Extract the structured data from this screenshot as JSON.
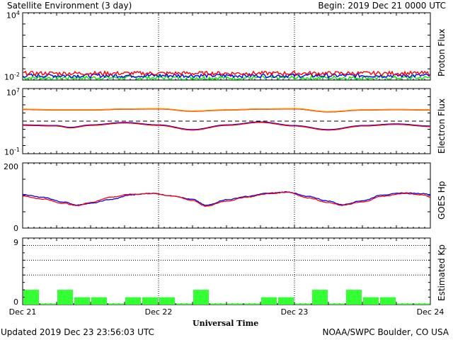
{
  "header": {
    "title": "Satellite Environment (3 day)",
    "begin": "Begin:  2019 Dec 21 0000 UTC"
  },
  "footer": {
    "updated": "Updated 2019 Dec 23 23:56:03 UTC",
    "credit": "NOAA/SWPC Boulder, CO USA"
  },
  "x_axis": {
    "title": "Universal Time",
    "ticks": [
      "Dec 21",
      "Dec 22",
      "Dec 23",
      "Dec 24"
    ]
  },
  "panels": {
    "proton": {
      "ylabel": "Proton Flux",
      "ytick_top_base": "10",
      "ytick_top_exp": "4",
      "ytick_bottom_base": "10",
      "ytick_bottom_exp": "-2"
    },
    "electron": {
      "ylabel": "Electron Flux",
      "ytick_top_base": "10",
      "ytick_top_exp": "7",
      "ytick_bottom_base": "10",
      "ytick_bottom_exp": "-1"
    },
    "goes": {
      "ylabel": "GOES Hp",
      "ytick_top": "200",
      "ytick_bottom": "0"
    },
    "kp": {
      "ylabel": "Estimated Kp",
      "ytick_top": "9",
      "ytick_bottom": "0"
    }
  },
  "colors": {
    "red": "#ff0000",
    "blue": "#0000ff",
    "green": "#00ee00",
    "orange": "#ff9900",
    "kp_bar": "#33ff33"
  },
  "chart_data": [
    {
      "type": "line",
      "panel": "proton",
      "ylabel": "Proton Flux",
      "ylim": [
        0.01,
        10000
      ],
      "log_scale": true,
      "x_range": [
        "2019-12-21",
        "2019-12-24"
      ],
      "threshold": 10,
      "series": [
        {
          "color": "red",
          "level": 0.04
        },
        {
          "color": "blue",
          "level": 0.025
        },
        {
          "color": "green",
          "level": 0.016
        }
      ]
    },
    {
      "type": "line",
      "panel": "electron",
      "ylabel": "Electron Flux",
      "ylim": [
        0.1,
        10000000
      ],
      "log_scale": true,
      "threshold": 1000,
      "series": [
        {
          "color": "orange",
          "x": [
            0,
            0.25,
            0.5,
            0.75,
            1.0,
            1.25,
            1.5,
            1.75,
            2.0,
            2.25,
            2.5,
            2.75,
            3.0
          ],
          "y": [
            30000,
            25000,
            25000,
            32000,
            35000,
            18000,
            25000,
            32000,
            35000,
            15000,
            25000,
            28000,
            25000
          ]
        },
        {
          "color": "red",
          "x": [
            0,
            0.25,
            0.35,
            0.5,
            0.75,
            1.0,
            1.25,
            1.5,
            1.75,
            2.0,
            2.25,
            2.5,
            2.75,
            3.0
          ],
          "y": [
            300,
            250,
            150,
            300,
            600,
            300,
            80,
            300,
            700,
            250,
            80,
            250,
            400,
            220
          ]
        }
      ]
    },
    {
      "type": "line",
      "panel": "goes",
      "ylabel": "GOES Hp",
      "ylim": [
        0,
        200
      ],
      "series": [
        {
          "color": "blue",
          "x": [
            0,
            0.15,
            0.3,
            0.4,
            0.5,
            0.65,
            0.8,
            0.95,
            1.1,
            1.25,
            1.35,
            1.5,
            1.65,
            1.8,
            1.95,
            2.1,
            2.25,
            2.35,
            2.5,
            2.65,
            2.8,
            2.95,
            3.0
          ],
          "y": [
            103,
            94,
            80,
            71,
            76,
            88,
            102,
            107,
            99,
            88,
            70,
            87,
            97,
            107,
            111,
            97,
            83,
            72,
            84,
            102,
            108,
            106,
            103
          ]
        },
        {
          "color": "red",
          "x": [
            0,
            0.15,
            0.3,
            0.4,
            0.5,
            0.65,
            0.8,
            0.95,
            1.1,
            1.25,
            1.35,
            1.5,
            1.65,
            1.8,
            1.95,
            2.1,
            2.25,
            2.35,
            2.5,
            2.65,
            2.8,
            2.95,
            3.0
          ],
          "y": [
            98,
            89,
            76,
            69,
            79,
            95,
            104,
            106,
            99,
            85,
            67,
            83,
            95,
            105,
            110,
            93,
            78,
            70,
            80,
            98,
            106,
            102,
            95
          ]
        }
      ]
    },
    {
      "type": "bar",
      "panel": "kp",
      "ylabel": "Estimated Kp",
      "ylim": [
        0,
        9
      ],
      "dotted_levels": [
        4,
        6,
        8
      ],
      "values": [
        2,
        0,
        2,
        1,
        1,
        0,
        1,
        1,
        1,
        0,
        2,
        0,
        0,
        0,
        1,
        1,
        0,
        2,
        0,
        2,
        1,
        1,
        0,
        0
      ]
    }
  ]
}
